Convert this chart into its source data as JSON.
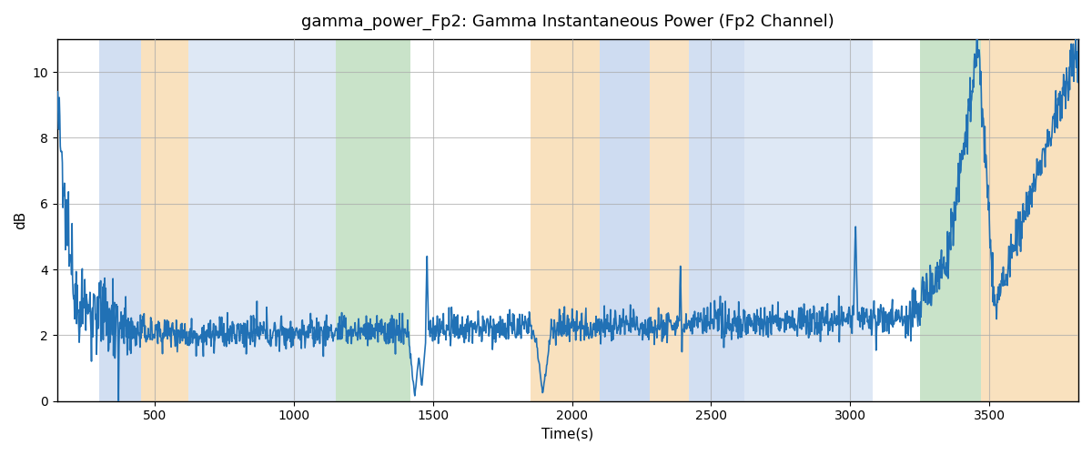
{
  "title": "gamma_power_Fp2: Gamma Instantaneous Power (Fp2 Channel)",
  "xlabel": "Time(s)",
  "ylabel": "dB",
  "xlim": [
    150,
    3820
  ],
  "ylim": [
    0,
    11
  ],
  "yticks": [
    0,
    2,
    4,
    6,
    8,
    10
  ],
  "xticks": [
    500,
    1000,
    1500,
    2000,
    2500,
    3000,
    3500
  ],
  "line_color": "#2171b5",
  "line_width": 1.2,
  "grid_color": "#aaaaaa",
  "background_color": "#ffffff",
  "bands": [
    {
      "xmin": 300,
      "xmax": 450,
      "color": "#aec6e8",
      "alpha": 0.55
    },
    {
      "xmin": 450,
      "xmax": 620,
      "color": "#f5c98a",
      "alpha": 0.55
    },
    {
      "xmin": 620,
      "xmax": 750,
      "color": "#aec6e8",
      "alpha": 0.4
    },
    {
      "xmin": 750,
      "xmax": 930,
      "color": "#aec6e8",
      "alpha": 0.4
    },
    {
      "xmin": 930,
      "xmax": 1150,
      "color": "#aec6e8",
      "alpha": 0.4
    },
    {
      "xmin": 1150,
      "xmax": 1420,
      "color": "#95c995",
      "alpha": 0.5
    },
    {
      "xmin": 1850,
      "xmax": 2100,
      "color": "#f5c98a",
      "alpha": 0.55
    },
    {
      "xmin": 2100,
      "xmax": 2280,
      "color": "#aec6e8",
      "alpha": 0.6
    },
    {
      "xmin": 2280,
      "xmax": 2420,
      "color": "#f5c98a",
      "alpha": 0.5
    },
    {
      "xmin": 2420,
      "xmax": 2620,
      "color": "#aec6e8",
      "alpha": 0.55
    },
    {
      "xmin": 2620,
      "xmax": 2900,
      "color": "#aec6e8",
      "alpha": 0.4
    },
    {
      "xmin": 2900,
      "xmax": 3080,
      "color": "#aec6e8",
      "alpha": 0.4
    },
    {
      "xmin": 3250,
      "xmax": 3470,
      "color": "#95c995",
      "alpha": 0.5
    },
    {
      "xmin": 3470,
      "xmax": 3820,
      "color": "#f5c98a",
      "alpha": 0.55
    }
  ],
  "figsize": [
    12,
    5
  ],
  "dpi": 100
}
